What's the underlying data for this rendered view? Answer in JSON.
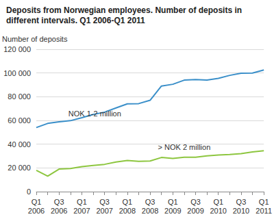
{
  "chart_data": {
    "type": "line",
    "title": "Deposits from Norwegian employees. Number of deposits in different intervals. Q1 2006-Q1 2011",
    "y_label": "Number of deposits",
    "categories": [
      "Q1 2006",
      null,
      "Q3 2006",
      null,
      "Q1 2007",
      null,
      "Q3 2007",
      null,
      "Q1 2008",
      null,
      "Q3 2008",
      null,
      "Q1 2009",
      null,
      "Q3 2009",
      null,
      "Q1 2010",
      null,
      "Q3 2010",
      null,
      "Q1 2011"
    ],
    "series": [
      {
        "name": "NOK 1-2 million",
        "color": "#3a8fc9",
        "values": [
          54000,
          57500,
          58800,
          59800,
          62300,
          65000,
          67000,
          70500,
          74000,
          74200,
          77000,
          89000,
          90500,
          94000,
          94500,
          94000,
          95500,
          98000,
          99800,
          100000,
          102500
        ]
      },
      {
        "name": "> NOK 2 million",
        "color": "#8dc63f",
        "values": [
          18000,
          13000,
          19000,
          19500,
          21000,
          22000,
          23000,
          25000,
          26200,
          25500,
          25800,
          28800,
          28000,
          29000,
          29000,
          30200,
          30800,
          31300,
          32000,
          33500,
          34500
        ]
      }
    ],
    "ylim": [
      0,
      120000
    ],
    "yticks": [
      0,
      {
        "value": 20000,
        "label": "20 000"
      },
      {
        "value": 40000,
        "label": "40 000"
      },
      {
        "value": 60000,
        "label": "60 000"
      },
      {
        "value": 80000,
        "label": "80 000"
      },
      {
        "value": 100000,
        "label": "100 000"
      },
      {
        "value": 120000,
        "label": "120 000"
      }
    ],
    "grid": true
  }
}
